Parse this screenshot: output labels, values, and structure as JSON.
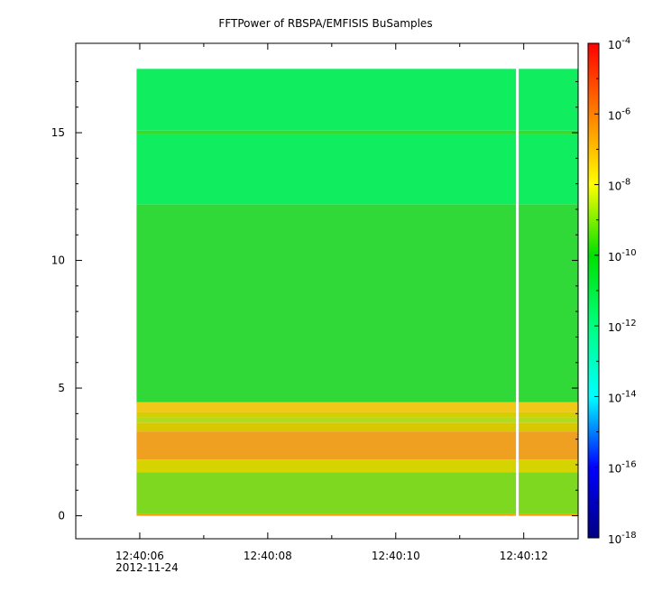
{
  "chart_data": {
    "type": "heatmap",
    "title": "FFTPower of RBSPA/EMFISIS  BuSamples",
    "xlabel": "",
    "ylabel": "",
    "x_axis": {
      "ticks": [
        {
          "label": "12:40:06",
          "sub": "2012-11-24",
          "t": 6
        },
        {
          "label": "12:40:08",
          "sub": "",
          "t": 8
        },
        {
          "label": "12:40:10",
          "sub": "",
          "t": 10
        },
        {
          "label": "12:40:12",
          "sub": "",
          "t": 12
        }
      ],
      "range_seconds_after_1240": [
        5.0,
        12.85
      ],
      "data_range_seconds_after_1240": [
        5.95,
        12.85
      ],
      "gap_seconds_after_1240": 11.9
    },
    "y_axis": {
      "ticks": [
        0,
        5,
        10,
        15
      ],
      "range": [
        -0.9,
        18.5
      ],
      "data_range": [
        0,
        17.5
      ]
    },
    "colorbar": {
      "scale": "log",
      "range": [
        1e-18,
        0.0001
      ],
      "ticks": [
        {
          "exp": -18
        },
        {
          "exp": -16
        },
        {
          "exp": -14
        },
        {
          "exp": -12
        },
        {
          "exp": -10
        },
        {
          "exp": -8
        },
        {
          "exp": -6
        },
        {
          "exp": -4
        }
      ],
      "tick_base": "10",
      "colors": [
        "#000080",
        "#0000ff",
        "#00ffff",
        "#00ff80",
        "#00e000",
        "#ffff00",
        "#ff8000",
        "#ff0000"
      ]
    },
    "bands": [
      {
        "y0": 0.0,
        "y1": 0.08,
        "color": "#ff9a00"
      },
      {
        "y0": 0.08,
        "y1": 1.7,
        "color": "#7fd820"
      },
      {
        "y0": 1.7,
        "y1": 2.2,
        "color": "#d6d400"
      },
      {
        "y0": 2.2,
        "y1": 3.3,
        "color": "#f0a020"
      },
      {
        "y0": 3.3,
        "y1": 3.65,
        "color": "#d8c800"
      },
      {
        "y0": 3.65,
        "y1": 3.85,
        "color": "#b0dc20"
      },
      {
        "y0": 3.85,
        "y1": 4.05,
        "color": "#d4d000"
      },
      {
        "y0": 4.05,
        "y1": 4.45,
        "color": "#f0c818"
      },
      {
        "y0": 4.45,
        "y1": 12.2,
        "color": "#30d838"
      },
      {
        "y0": 12.2,
        "y1": 14.95,
        "color": "#10ee60"
      },
      {
        "y0": 14.95,
        "y1": 15.08,
        "color": "#40d820"
      },
      {
        "y0": 15.08,
        "y1": 17.5,
        "color": "#10ee60"
      }
    ]
  }
}
